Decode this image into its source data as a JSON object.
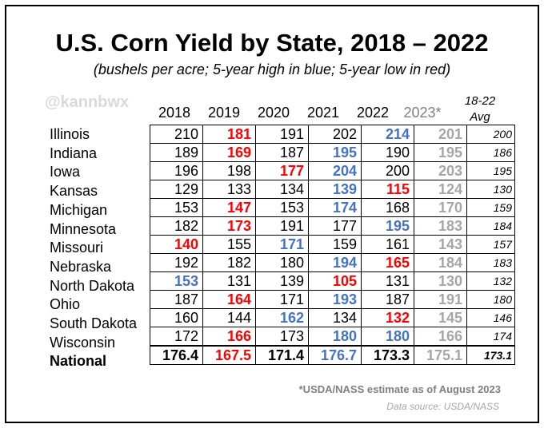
{
  "title": "U.S. Corn Yield by State, 2018 – 2022",
  "subtitle": "(bushels per acre; 5-year high in blue; 5-year low in red)",
  "watermark": "@kannbwx",
  "colors": {
    "high": "#4472c4",
    "low": "#ff0000",
    "estimate": "#a6a6a6",
    "text": "#000000"
  },
  "footnote": "*USDA/NASS estimate as of August 2023",
  "source": "Data source: USDA/NASS",
  "chart_data": {
    "type": "table",
    "title": "U.S. Corn Yield by State, 2018 – 2022",
    "subtitle": "(bushels per acre; 5-year high in blue; 5-year low in red)",
    "columns": [
      "2018",
      "2019",
      "2020",
      "2021",
      "2022",
      "2023*"
    ],
    "avg_header": [
      "18-22",
      "Avg"
    ],
    "rows": [
      {
        "label": "Illinois",
        "values": [
          "210",
          "181",
          "191",
          "202",
          "214",
          "201"
        ],
        "avg": "200",
        "styles": [
          "",
          "lo",
          "",
          "",
          "hi",
          ""
        ]
      },
      {
        "label": "Indiana",
        "values": [
          "189",
          "169",
          "187",
          "195",
          "190",
          "195"
        ],
        "avg": "186",
        "styles": [
          "",
          "lo",
          "",
          "hi",
          "",
          ""
        ]
      },
      {
        "label": "Iowa",
        "values": [
          "196",
          "198",
          "177",
          "204",
          "200",
          "203"
        ],
        "avg": "195",
        "styles": [
          "",
          "",
          "lo",
          "hi",
          "",
          ""
        ]
      },
      {
        "label": "Kansas",
        "values": [
          "129",
          "133",
          "134",
          "139",
          "115",
          "124"
        ],
        "avg": "130",
        "styles": [
          "",
          "",
          "",
          "hi",
          "lo",
          ""
        ]
      },
      {
        "label": "Michigan",
        "values": [
          "153",
          "147",
          "153",
          "174",
          "168",
          "170"
        ],
        "avg": "159",
        "styles": [
          "",
          "lo",
          "",
          "hi",
          "",
          ""
        ]
      },
      {
        "label": "Minnesota",
        "values": [
          "182",
          "173",
          "191",
          "177",
          "195",
          "183"
        ],
        "avg": "184",
        "styles": [
          "",
          "lo",
          "",
          "",
          "hi",
          ""
        ]
      },
      {
        "label": "Missouri",
        "values": [
          "140",
          "155",
          "171",
          "159",
          "161",
          "143"
        ],
        "avg": "157",
        "styles": [
          "lo",
          "",
          "hi",
          "",
          "",
          ""
        ]
      },
      {
        "label": "Nebraska",
        "values": [
          "192",
          "182",
          "180",
          "194",
          "165",
          "184"
        ],
        "avg": "183",
        "styles": [
          "",
          "",
          "",
          "hi",
          "lo",
          ""
        ]
      },
      {
        "label": "North Dakota",
        "values": [
          "153",
          "131",
          "139",
          "105",
          "131",
          "130"
        ],
        "avg": "132",
        "styles": [
          "hi",
          "",
          "",
          "lo",
          "",
          ""
        ]
      },
      {
        "label": "Ohio",
        "values": [
          "187",
          "164",
          "171",
          "193",
          "187",
          "191"
        ],
        "avg": "180",
        "styles": [
          "",
          "lo",
          "",
          "hi",
          "",
          ""
        ]
      },
      {
        "label": "South Dakota",
        "values": [
          "160",
          "144",
          "162",
          "134",
          "132",
          "145"
        ],
        "avg": "146",
        "styles": [
          "",
          "",
          "hi",
          "",
          "lo",
          ""
        ]
      },
      {
        "label": "Wisconsin",
        "values": [
          "172",
          "166",
          "173",
          "180",
          "180",
          "166"
        ],
        "avg": "174",
        "styles": [
          "",
          "lo",
          "",
          "hi",
          "hi",
          ""
        ]
      },
      {
        "label": "National",
        "values": [
          "176.4",
          "167.5",
          "171.4",
          "176.7",
          "173.3",
          "175.1"
        ],
        "avg": "173.1",
        "styles": [
          "",
          "lo",
          "",
          "hi",
          "",
          ""
        ]
      }
    ]
  }
}
